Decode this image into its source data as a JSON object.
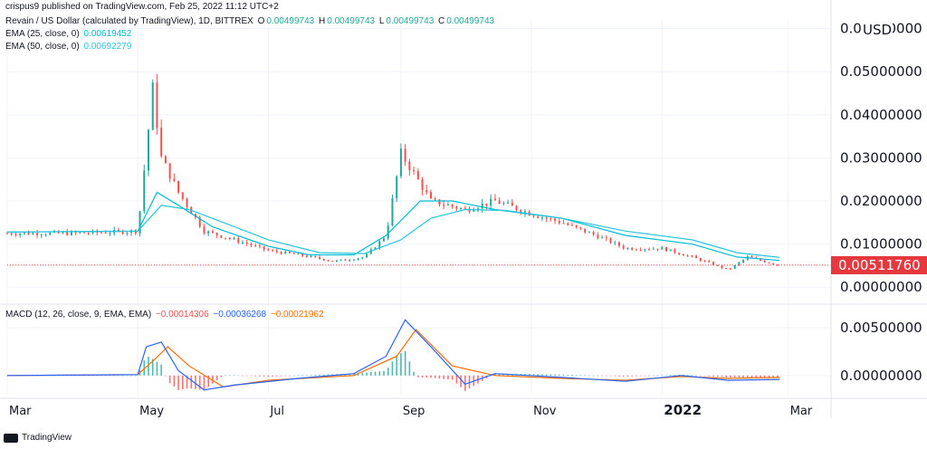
{
  "header": {
    "published": "crispus9 published on TradingView.com, Feb 25, 2022 11:12 UTC+2",
    "title": "Revain / US Dollar (calculated by TradingView), 1D, BITTREX",
    "ohlc": [
      {
        "key": "O",
        "value": "0.00499743"
      },
      {
        "key": "H",
        "value": "0.00499743"
      },
      {
        "key": "L",
        "value": "0.00499743"
      },
      {
        "key": "C",
        "value": "0.00499743"
      }
    ],
    "ema25_label": "EMA (25, close, 0)",
    "ema25_value": "0.00619452",
    "ema50_label": "EMA (50, close, 0)",
    "ema50_value": "0.00692279",
    "macd_label": "MACD (12, 26, close, 9, EMA, EMA)",
    "macd_hist": "−0.00014306",
    "macd_line": "−0.00036268",
    "macd_signal": "−0.00021962"
  },
  "currency": "USD",
  "last_price": "0.00511760",
  "footer": {
    "brand": "TradingView"
  },
  "colors": {
    "up": "#26a69a",
    "down": "#ef5350",
    "ema25": "#00bcd4",
    "ema50": "#26c6da",
    "macd": "#2962ff",
    "signal": "#ff6d00",
    "price_line": "#e5393f"
  },
  "chart_data": {
    "type": "line",
    "panes": [
      {
        "name": "price",
        "ylim": [
          -0.001,
          0.062
        ],
        "y_ticks": [
          {
            "value": 0.06,
            "label": "0.06000000"
          },
          {
            "value": 0.05,
            "label": "0.05000000"
          },
          {
            "value": 0.04,
            "label": "0.04000000"
          },
          {
            "value": 0.03,
            "label": "0.03000000"
          },
          {
            "value": 0.02,
            "label": "0.02000000"
          },
          {
            "value": 0.01,
            "label": "0.01000000"
          },
          {
            "value": 0.0,
            "label": "0.00000000"
          }
        ],
        "series": [
          {
            "name": "Revain / US Dollar",
            "type": "candlestick",
            "color_up": "#26a69a",
            "color_down": "#ef5350",
            "x": [
              "2021-03-01",
              "2021-04-01",
              "2021-05-01",
              "2021-05-08",
              "2021-05-12",
              "2021-05-20",
              "2021-06-01",
              "2021-06-15",
              "2021-07-01",
              "2021-07-15",
              "2021-08-01",
              "2021-08-15",
              "2021-08-25",
              "2021-09-01",
              "2021-09-05",
              "2021-09-15",
              "2021-10-01",
              "2021-10-15",
              "2021-11-01",
              "2021-11-15",
              "2021-12-01",
              "2021-12-15",
              "2022-01-01",
              "2022-01-15",
              "2022-02-01",
              "2022-02-10",
              "2022-02-25"
            ],
            "y": [
              0.0125,
              0.0125,
              0.013,
              0.046,
              0.03,
              0.022,
              0.013,
              0.011,
              0.0085,
              0.0075,
              0.006,
              0.007,
              0.012,
              0.031,
              0.028,
              0.02,
              0.018,
              0.02,
              0.017,
              0.015,
              0.012,
              0.009,
              0.009,
              0.007,
              0.004,
              0.007,
              0.005
            ]
          },
          {
            "name": "EMA (25, close, 0)",
            "color": "#00bcd4",
            "x": [
              "2021-03-01",
              "2021-05-01",
              "2021-05-10",
              "2021-05-20",
              "2021-06-05",
              "2021-07-01",
              "2021-07-20",
              "2021-08-10",
              "2021-08-25",
              "2021-09-10",
              "2021-09-25",
              "2021-10-15",
              "2021-11-15",
              "2021-12-15",
              "2022-01-15",
              "2022-02-05",
              "2022-02-25"
            ],
            "y": [
              0.0128,
              0.013,
              0.022,
              0.019,
              0.014,
              0.0095,
              0.0075,
              0.0075,
              0.012,
              0.02,
              0.02,
              0.018,
              0.016,
              0.012,
              0.01,
              0.007,
              0.0062
            ]
          },
          {
            "name": "EMA (50, close, 0)",
            "color": "#26c6da",
            "x": [
              "2021-03-01",
              "2021-05-01",
              "2021-05-12",
              "2021-05-25",
              "2021-06-10",
              "2021-07-01",
              "2021-07-25",
              "2021-08-15",
              "2021-09-01",
              "2021-09-15",
              "2021-10-01",
              "2021-10-20",
              "2021-11-15",
              "2021-12-15",
              "2022-01-15",
              "2022-02-05",
              "2022-02-25"
            ],
            "y": [
              0.0128,
              0.013,
              0.019,
              0.018,
              0.015,
              0.011,
              0.008,
              0.0078,
              0.011,
              0.016,
              0.018,
              0.0178,
              0.016,
              0.013,
              0.011,
              0.008,
              0.0069
            ]
          }
        ]
      },
      {
        "name": "MACD",
        "ylim": [
          -0.002,
          0.0065
        ],
        "y_ticks": [
          {
            "value": 0.005,
            "label": "0.00500000"
          },
          {
            "value": 0.0,
            "label": "0.00000000"
          }
        ],
        "series": [
          {
            "name": "MACD",
            "color": "#2962ff",
            "x": [
              "2021-03-01",
              "2021-05-01",
              "2021-05-05",
              "2021-05-12",
              "2021-05-20",
              "2021-06-01",
              "2021-06-15",
              "2021-07-15",
              "2021-08-10",
              "2021-08-25",
              "2021-09-03",
              "2021-09-15",
              "2021-10-01",
              "2021-10-15",
              "2021-11-15",
              "2021-12-15",
              "2022-01-10",
              "2022-02-01",
              "2022-02-25"
            ],
            "y": [
              0.0,
              0.0001,
              0.003,
              0.0035,
              0.0005,
              -0.0015,
              -0.001,
              -0.0003,
              0.0002,
              0.002,
              0.0058,
              0.003,
              -0.0009,
              0.0002,
              -0.0002,
              -0.0006,
              0.0,
              -0.0005,
              -0.0004
            ]
          },
          {
            "name": "Signal",
            "color": "#ff6d00",
            "x": [
              "2021-03-01",
              "2021-05-01",
              "2021-05-08",
              "2021-05-15",
              "2021-05-25",
              "2021-06-10",
              "2021-07-01",
              "2021-08-10",
              "2021-08-30",
              "2021-09-08",
              "2021-09-25",
              "2021-10-15",
              "2021-11-15",
              "2021-12-15",
              "2022-01-10",
              "2022-02-01",
              "2022-02-25"
            ],
            "y": [
              0.0,
              0.0001,
              0.0015,
              0.003,
              0.001,
              -0.0012,
              -0.0005,
              0.0,
              0.002,
              0.0048,
              0.001,
              0.0,
              -0.0003,
              -0.0005,
              -0.0001,
              -0.0003,
              -0.0002
            ]
          }
        ]
      }
    ],
    "x_ticks": [
      {
        "value": "2021-03-01",
        "label": "Mar",
        "bold": false
      },
      {
        "value": "2021-05-01",
        "label": "May",
        "bold": false
      },
      {
        "value": "2021-07-01",
        "label": "Jul",
        "bold": false
      },
      {
        "value": "2021-09-01",
        "label": "Sep",
        "bold": false
      },
      {
        "value": "2021-11-01",
        "label": "Nov",
        "bold": false
      },
      {
        "value": "2022-01-01",
        "label": "2022",
        "bold": true
      },
      {
        "value": "2022-03-01",
        "label": "Mar",
        "bold": false
      }
    ],
    "xlim": [
      "2021-03-01",
      "2022-03-21"
    ],
    "grid": true,
    "legend": "top-left"
  }
}
